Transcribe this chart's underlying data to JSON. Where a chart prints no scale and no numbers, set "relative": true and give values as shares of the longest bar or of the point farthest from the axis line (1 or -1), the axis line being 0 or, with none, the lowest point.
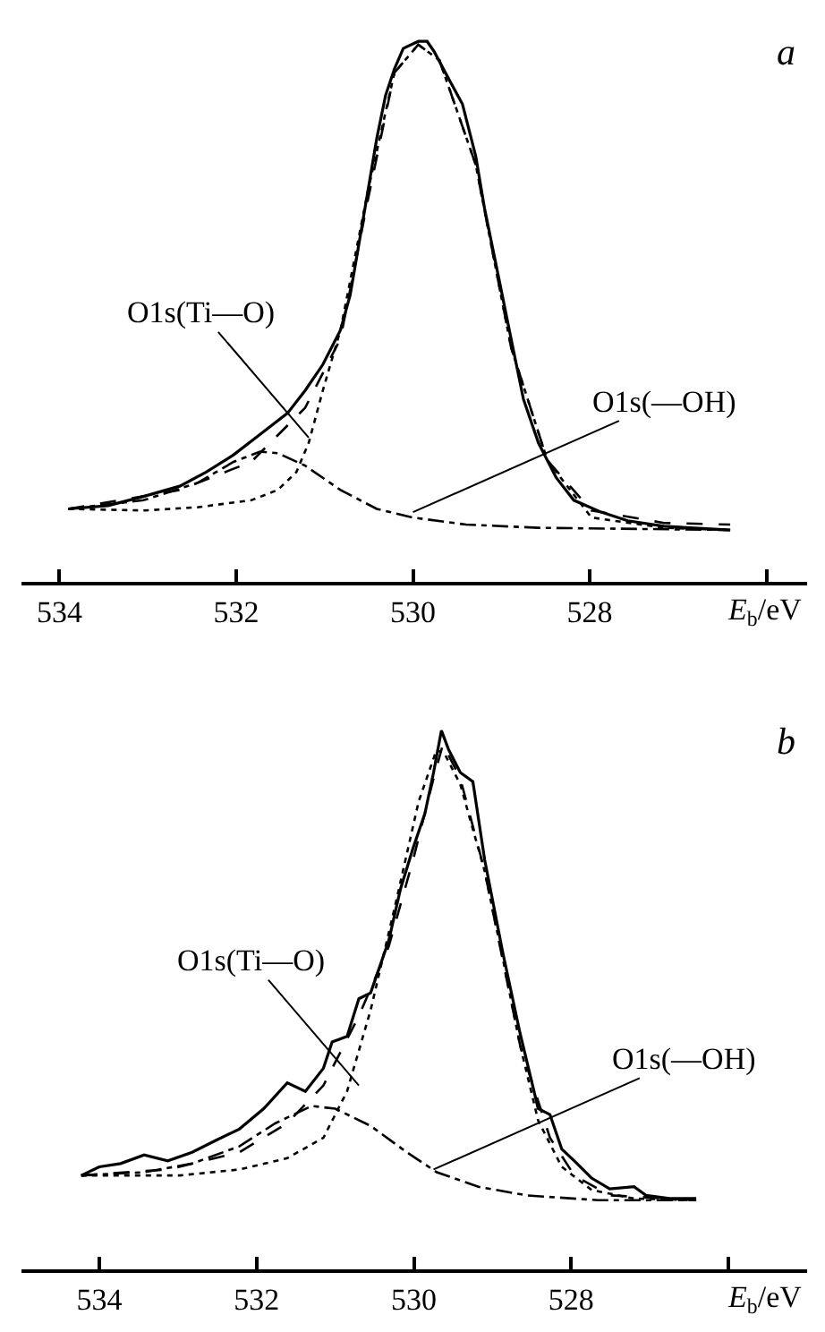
{
  "chart_data": [
    {
      "type": "line",
      "relative": true,
      "xlabel": "E$_{b}$/eV",
      "xlim": [
        534.43,
        525.54
      ],
      "xticks": [
        534,
        532,
        530,
        528,
        {
          "value": 526,
          "label": null
        }
      ],
      "marker": "none",
      "series": [
        {
          "color": "#000000",
          "line_style": "solid",
          "x": [
            533.9,
            533.45,
            533.05,
            532.64,
            532.34,
            532.03,
            531.73,
            531.42,
            531.22,
            531.02,
            530.82,
            530.71,
            530.61,
            530.51,
            530.41,
            530.31,
            530.21,
            530.11,
            529.94,
            529.84,
            529.76,
            529.6,
            529.44,
            529.29,
            529.19,
            529.03,
            528.89,
            528.75,
            528.58,
            528.38,
            528.18,
            527.87,
            527.57,
            527.16,
            526.86,
            526.41
          ],
          "values": [
            0.135,
            0.141,
            0.158,
            0.177,
            0.203,
            0.235,
            0.273,
            0.312,
            0.354,
            0.402,
            0.466,
            0.531,
            0.627,
            0.723,
            0.82,
            0.9,
            0.949,
            0.987,
            1.0,
            1.0,
            0.981,
            0.932,
            0.884,
            0.788,
            0.691,
            0.563,
            0.45,
            0.338,
            0.257,
            0.193,
            0.151,
            0.129,
            0.113,
            0.103,
            0.1,
            0.096
          ]
        },
        {
          "color": "#000000",
          "line_style": "dashed",
          "x": [
            533.9,
            532.64,
            531.83,
            531.22,
            530.82,
            530.51,
            530.21,
            529.94,
            529.7,
            529.29,
            528.89,
            528.48,
            527.98,
            527.16,
            526.41
          ],
          "values": [
            0.135,
            0.17,
            0.222,
            0.322,
            0.45,
            0.707,
            0.942,
            0.994,
            0.965,
            0.772,
            0.434,
            0.225,
            0.132,
            0.109,
            0.106
          ]
        },
        {
          "color": "#000000",
          "line_style": "dotted",
          "x": [
            533.9,
            533.05,
            532.44,
            531.83,
            531.53,
            531.32,
            531.18,
            531.02,
            530.82,
            530.51,
            530.21,
            529.94,
            529.7,
            529.29,
            528.89,
            528.48,
            527.98,
            527.16,
            526.41
          ],
          "values": [
            0.135,
            0.132,
            0.138,
            0.151,
            0.17,
            0.203,
            0.257,
            0.354,
            0.466,
            0.723,
            0.942,
            0.994,
            0.965,
            0.772,
            0.434,
            0.225,
            0.119,
            0.1,
            0.096
          ]
        },
        {
          "color": "#000000",
          "line_style": "dashdot",
          "x": [
            533.9,
            533.05,
            532.44,
            532.03,
            531.73,
            531.53,
            531.22,
            530.82,
            530.41,
            530.0,
            529.4,
            528.58,
            526.41
          ],
          "values": [
            0.135,
            0.151,
            0.183,
            0.222,
            0.241,
            0.238,
            0.215,
            0.17,
            0.135,
            0.119,
            0.106,
            0.1,
            0.096
          ]
        }
      ],
      "annotations": [
        {
          "text": "O1s(Ti—O)",
          "x": 531.18,
          "y": 0.267
        },
        {
          "text": "O1s(—OH)",
          "x": 530.0,
          "y": 0.129
        },
        "a"
      ]
    },
    {
      "type": "line",
      "relative": true,
      "xlabel": "E$_{b}$/eV",
      "xlim": [
        534.99,
        525.0
      ],
      "xticks": [
        534,
        532,
        530,
        528,
        {
          "value": 526,
          "label": null
        }
      ],
      "marker": "none",
      "series": [
        {
          "color": "#000000",
          "line_style": "solid",
          "x": [
            534.23,
            534.0,
            533.73,
            533.43,
            533.13,
            532.82,
            532.52,
            532.22,
            531.91,
            531.61,
            531.38,
            531.15,
            531.04,
            530.85,
            530.7,
            530.55,
            530.32,
            530.17,
            530.01,
            529.86,
            529.75,
            529.65,
            529.56,
            529.41,
            529.25,
            529.1,
            528.87,
            528.65,
            528.42,
            528.27,
            528.12,
            527.96,
            527.74,
            527.51,
            527.2,
            527.05,
            526.75,
            526.41
          ],
          "values": [
            0.174,
            0.19,
            0.196,
            0.212,
            0.201,
            0.217,
            0.239,
            0.26,
            0.298,
            0.346,
            0.33,
            0.373,
            0.422,
            0.432,
            0.502,
            0.513,
            0.61,
            0.706,
            0.782,
            0.846,
            0.922,
            1.0,
            0.965,
            0.922,
            0.905,
            0.76,
            0.588,
            0.438,
            0.298,
            0.287,
            0.223,
            0.201,
            0.169,
            0.149,
            0.153,
            0.137,
            0.131,
            0.131
          ]
        },
        {
          "color": "#000000",
          "line_style": "dashed",
          "x": [
            534.23,
            533.13,
            532.22,
            531.61,
            531.15,
            530.7,
            530.32,
            530.01,
            529.75,
            529.63,
            529.41,
            529.1,
            528.65,
            528.27,
            527.96,
            527.51,
            526.41
          ],
          "values": [
            0.174,
            0.185,
            0.217,
            0.271,
            0.341,
            0.47,
            0.599,
            0.76,
            0.911,
            0.975,
            0.911,
            0.739,
            0.416,
            0.244,
            0.174,
            0.137,
            0.128
          ]
        },
        {
          "color": "#000000",
          "line_style": "dotted",
          "x": [
            534.23,
            532.97,
            532.22,
            531.61,
            531.15,
            530.85,
            530.55,
            530.24,
            529.94,
            529.71,
            529.6,
            529.41,
            529.1,
            528.87,
            528.65,
            528.42,
            528.12,
            527.74,
            527.2,
            526.41
          ],
          "values": [
            0.174,
            0.174,
            0.185,
            0.206,
            0.244,
            0.33,
            0.481,
            0.674,
            0.868,
            0.965,
            0.954,
            0.9,
            0.739,
            0.577,
            0.416,
            0.276,
            0.19,
            0.147,
            0.131,
            0.128
          ]
        },
        {
          "color": "#000000",
          "line_style": "dashdot",
          "x": [
            534.23,
            533.43,
            532.82,
            532.22,
            531.76,
            531.3,
            531.0,
            530.55,
            530.09,
            529.71,
            529.18,
            528.57,
            527.66,
            526.41
          ],
          "values": [
            0.174,
            0.18,
            0.196,
            0.228,
            0.271,
            0.303,
            0.298,
            0.266,
            0.217,
            0.18,
            0.153,
            0.137,
            0.128,
            0.128
          ]
        }
      ],
      "annotations": [
        {
          "text": "O1s(Ti—O)",
          "x": 530.7,
          "y": 0.341
        },
        {
          "text": "O1s(—OH)",
          "x": 529.75,
          "y": 0.185
        },
        "b"
      ]
    }
  ]
}
